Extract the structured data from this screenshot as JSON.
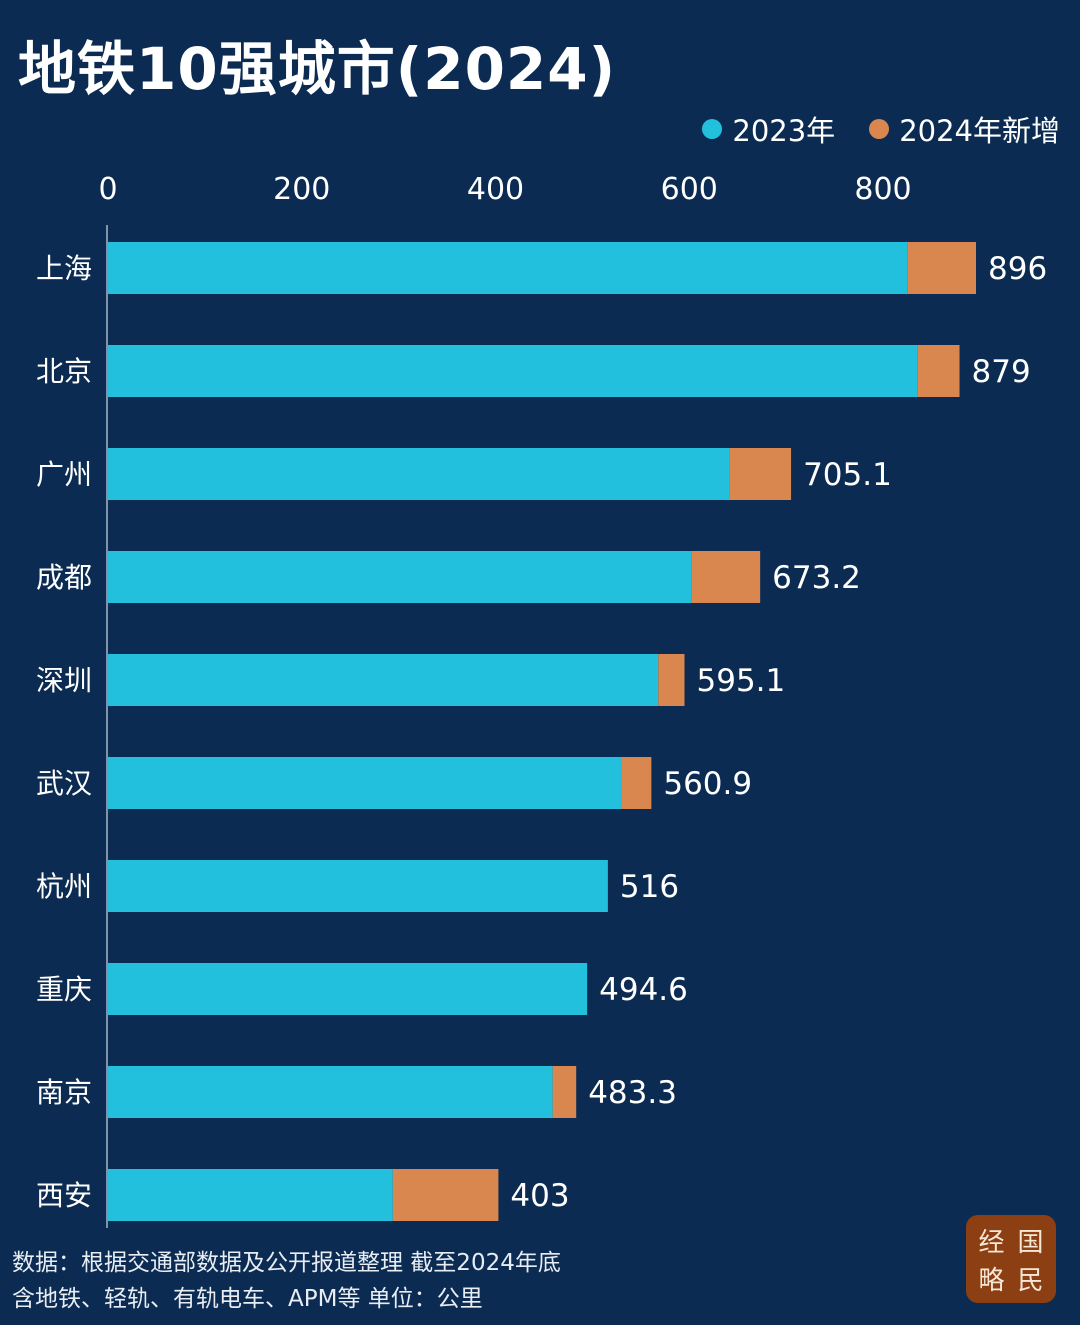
{
  "chart_data": {
    "type": "bar",
    "orientation": "horizontal",
    "stacked": true,
    "title": "地铁10强城市(2024)",
    "categories": [
      "上海",
      "北京",
      "广州",
      "成都",
      "深圳",
      "武汉",
      "杭州",
      "重庆",
      "南京",
      "西安"
    ],
    "series": [
      {
        "name": "2023年",
        "color": "#22c0dc",
        "values": [
          825,
          836,
          642,
          602,
          568,
          530,
          516,
          494.6,
          459,
          294
        ]
      },
      {
        "name": "2024年新增",
        "color": "#d9874f",
        "values": [
          71,
          43,
          63.1,
          71.2,
          27.1,
          30.9,
          0,
          0,
          24.3,
          109
        ]
      }
    ],
    "totals": [
      "896",
      "879",
      "705.1",
      "673.2",
      "595.1",
      "560.9",
      "516",
      "494.6",
      "483.3",
      "403"
    ],
    "xticks": [
      "0",
      "200",
      "400",
      "600",
      "800"
    ],
    "xlim": [
      0,
      900
    ],
    "grid": false,
    "legend_position": "top-right"
  },
  "footer": {
    "line1": "数据：根据交通部数据及公开报道整理 截至2024年底",
    "line2": "含地铁、轻轨、有轨电车、APM等 单位：公里"
  },
  "logo": {
    "chars": [
      "经",
      "国",
      "略",
      "民"
    ]
  }
}
